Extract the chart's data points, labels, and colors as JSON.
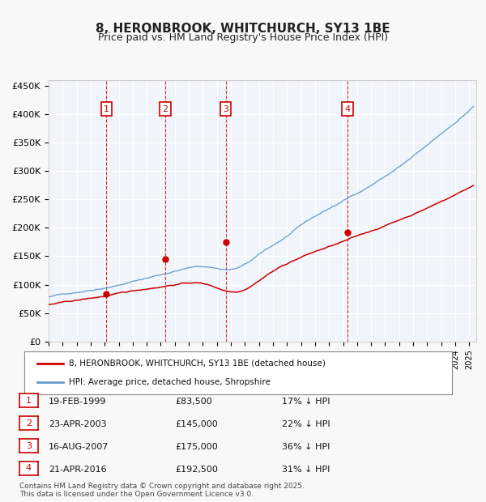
{
  "title": "8, HERONBROOK, WHITCHURCH, SY13 1BE",
  "subtitle": "Price paid vs. HM Land Registry's House Price Index (HPI)",
  "legend_line1": "8, HERONBROOK, WHITCHURCH, SY13 1BE (detached house)",
  "legend_line2": "HPI: Average price, detached house, Shropshire",
  "footnote1": "Contains HM Land Registry data © Crown copyright and database right 2025.",
  "footnote2": "This data is licensed under the Open Government Licence v3.0.",
  "sales": [
    {
      "num": 1,
      "date": "19-FEB-1999",
      "price": 83500,
      "pct": "17%",
      "year": 1999.13
    },
    {
      "num": 2,
      "date": "23-APR-2003",
      "price": 145000,
      "pct": "22%",
      "year": 2003.31
    },
    {
      "num": 3,
      "date": "16-AUG-2007",
      "price": 175000,
      "pct": "36%",
      "year": 2007.63
    },
    {
      "num": 4,
      "date": "21-APR-2016",
      "price": 192500,
      "pct": "31%",
      "year": 2016.31
    }
  ],
  "ylim": [
    0,
    460000
  ],
  "yticks": [
    0,
    50000,
    100000,
    150000,
    200000,
    250000,
    300000,
    350000,
    400000,
    450000
  ],
  "xlim_start": 1995.0,
  "xlim_end": 2025.5,
  "bg_color": "#dce9f5",
  "plot_bg": "#f0f4fb",
  "grid_color": "#ffffff",
  "red_line_color": "#cc0000",
  "blue_line_color": "#6699cc",
  "dashed_color": "#cc0000",
  "marker_color": "#cc0000",
  "box_color": "#cc0000"
}
